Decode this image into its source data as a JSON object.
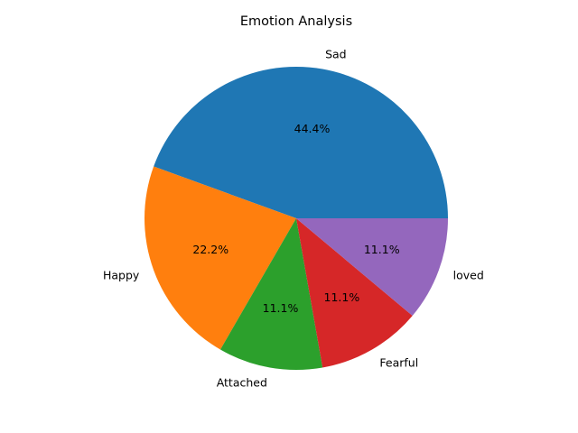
{
  "chart_data": {
    "type": "pie",
    "title": "Emotion Analysis",
    "categories": [
      "Sad",
      "Happy",
      "Attached",
      "Fearful",
      "loved"
    ],
    "values": [
      4,
      2,
      1,
      1,
      1
    ],
    "percent_labels": [
      "44.4%",
      "22.2%",
      "11.1%",
      "11.1%",
      "11.1%"
    ],
    "colors": [
      "#1f77b4",
      "#ff7f0e",
      "#2ca02c",
      "#d62728",
      "#9467bd"
    ],
    "start_angle_deg": 0,
    "direction": "counterclockwise"
  }
}
